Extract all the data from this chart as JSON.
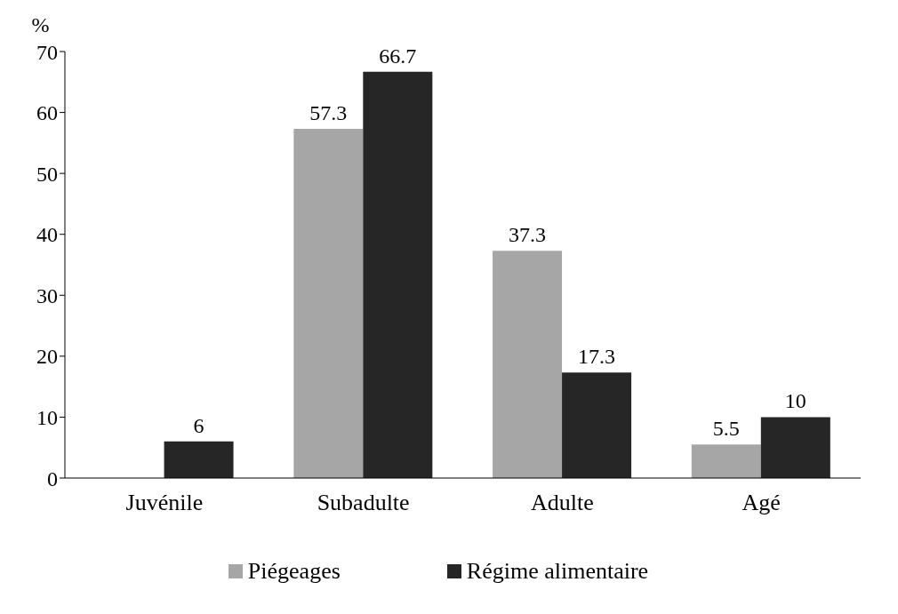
{
  "chart_data": {
    "type": "bar",
    "ylabel": "%",
    "categories": [
      "Juvénile",
      "Subadulte",
      "Adulte",
      "Agé"
    ],
    "series": [
      {
        "name": "Piégeages",
        "color": "#a6a6a6",
        "values": [
          0,
          57.3,
          37.3,
          5.5
        ],
        "value_labels": [
          null,
          "57.3",
          "37.3",
          "5.5"
        ]
      },
      {
        "name": "Régime alimentaire",
        "color": "#262626",
        "values": [
          6,
          66.7,
          17.3,
          10
        ],
        "value_labels": [
          "6",
          "66.7",
          "17.3",
          "10"
        ]
      }
    ],
    "ylim": [
      0,
      70
    ],
    "yticks": [
      0,
      10,
      20,
      30,
      40,
      50,
      60,
      70
    ],
    "grid": false,
    "legend": "bottom"
  }
}
